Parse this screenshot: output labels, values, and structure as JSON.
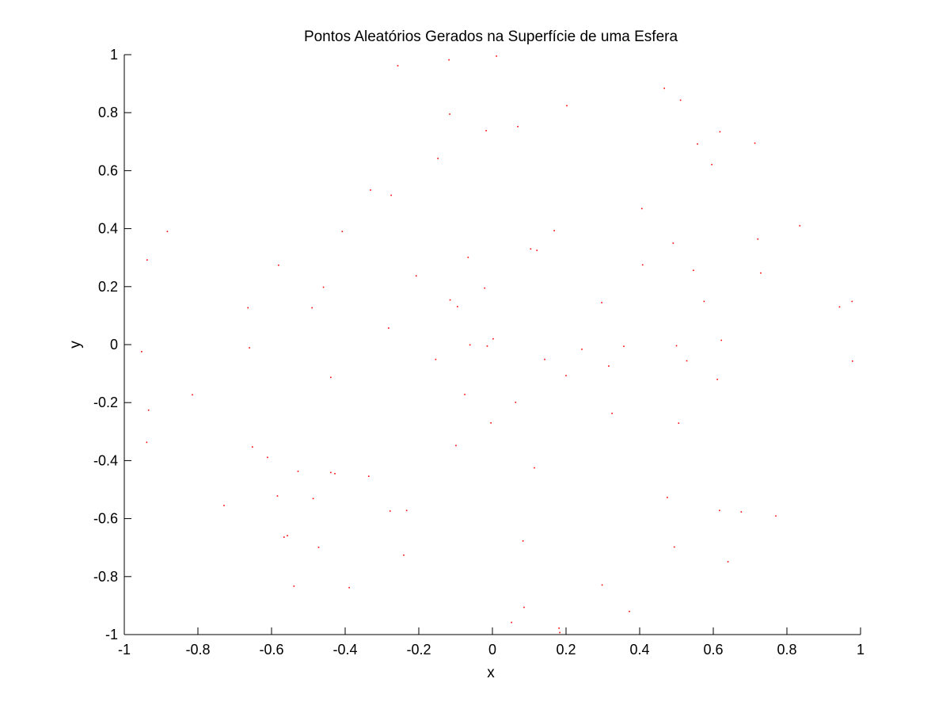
{
  "chart_data": {
    "type": "scatter",
    "title": "Pontos Aleatórios Gerados na Superfície de uma Esfera",
    "xlabel": "x",
    "ylabel": "y",
    "xlim": [
      -1,
      1
    ],
    "ylim": [
      -1,
      1
    ],
    "xticks": [
      "-1",
      "-0.8",
      "-0.6",
      "-0.4",
      "-0.2",
      "0",
      "0.2",
      "0.4",
      "0.6",
      "0.8",
      "1"
    ],
    "yticks": [
      "-1",
      "-0.8",
      "-0.6",
      "-0.4",
      "-0.2",
      "0",
      "0.2",
      "0.4",
      "0.6",
      "0.8",
      "1"
    ],
    "grid": false,
    "box": "open-left-bottom",
    "marker_color": "#ff0000",
    "series": [
      {
        "x": [
          0.011,
          -0.118,
          -0.257,
          0.202,
          -0.116,
          0.467,
          0.511,
          -0.017,
          0.069,
          0.618,
          0.713,
          0.557,
          -0.148,
          0.596,
          -0.331,
          -0.275,
          0.406,
          0.835,
          -0.883,
          -0.408,
          0.168,
          0.721,
          0.491,
          0.104,
          0.121,
          -0.938,
          -0.066,
          -0.581,
          -0.207,
          0.408,
          0.546,
          0.729,
          -0.459,
          -0.021,
          -0.115,
          -0.095,
          -0.664,
          -0.49,
          0.297,
          0.575,
          0.943,
          0.977,
          -0.282,
          -0.953,
          -0.66,
          -0.061,
          -0.014,
          0.002,
          0.243,
          0.357,
          0.5,
          0.622,
          0.142,
          -0.154,
          0.316,
          0.528,
          -0.439,
          0.2,
          0.611,
          -0.815,
          -0.934,
          -0.075,
          0.063,
          0.325,
          -0.004,
          0.506,
          0.978,
          -0.939,
          -0.099,
          -0.652,
          -0.611,
          -0.528,
          -0.439,
          -0.336,
          0.114,
          -0.729,
          -0.487,
          -0.584,
          -0.278,
          -0.233,
          0.475,
          0.617,
          0.676,
          0.77,
          -0.566,
          -0.557,
          0.083,
          -0.472,
          0.494,
          0.64,
          -0.241,
          -0.539,
          -0.389,
          0.298,
          0.372,
          0.086,
          0.052,
          0.181,
          -0.428,
          0.183
        ],
        "y": [
          0.995,
          0.982,
          0.962,
          0.824,
          0.795,
          0.884,
          0.843,
          0.738,
          0.752,
          0.734,
          0.695,
          0.692,
          0.642,
          0.621,
          0.533,
          0.515,
          0.469,
          0.41,
          0.39,
          0.39,
          0.393,
          0.364,
          0.35,
          0.33,
          0.325,
          0.292,
          0.301,
          0.274,
          0.237,
          0.275,
          0.256,
          0.247,
          0.198,
          0.195,
          0.154,
          0.131,
          0.127,
          0.127,
          0.145,
          0.149,
          0.13,
          0.149,
          0.057,
          -0.024,
          -0.011,
          -0.001,
          -0.005,
          0.02,
          -0.016,
          -0.006,
          -0.004,
          0.015,
          -0.051,
          -0.051,
          -0.074,
          -0.056,
          -0.113,
          -0.107,
          -0.12,
          -0.173,
          -0.226,
          -0.172,
          -0.199,
          -0.237,
          -0.27,
          -0.271,
          -0.057,
          -0.337,
          -0.348,
          -0.353,
          -0.389,
          -0.437,
          -0.441,
          -0.454,
          -0.425,
          -0.555,
          -0.531,
          -0.522,
          -0.574,
          -0.572,
          -0.527,
          -0.572,
          -0.577,
          -0.591,
          -0.664,
          -0.659,
          -0.677,
          -0.699,
          -0.698,
          -0.749,
          -0.726,
          -0.833,
          -0.838,
          -0.829,
          -0.92,
          -0.906,
          -0.958,
          -0.978,
          -0.445,
          -0.993
        ]
      }
    ]
  }
}
